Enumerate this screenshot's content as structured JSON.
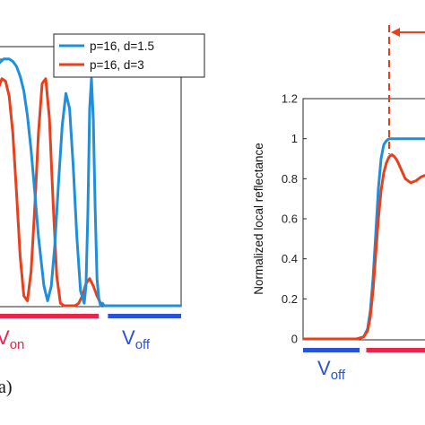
{
  "panel_label": "a)",
  "chart_data": [
    {
      "type": "line",
      "panel": "left",
      "title": "",
      "xlabel": "",
      "ylabel": "",
      "xlim": [
        0,
        1
      ],
      "ylim": [
        0,
        1.05
      ],
      "legend": {
        "placement": "top-right",
        "entries": [
          {
            "label": "p=16, d=1.5",
            "color": "#1f8fdb"
          },
          {
            "label": "p=16, d=3",
            "color": "#e8401c"
          }
        ]
      },
      "series": [
        {
          "name": "p=16, d=1.5",
          "color": "#1f8fdb",
          "x": [
            0.0,
            0.03,
            0.06,
            0.08,
            0.1,
            0.12,
            0.14,
            0.16,
            0.18,
            0.2,
            0.22,
            0.25,
            0.27,
            0.29,
            0.31,
            0.33,
            0.35,
            0.37,
            0.39,
            0.41,
            0.43,
            0.45,
            0.47,
            0.48,
            0.49,
            0.5,
            0.51,
            0.52,
            0.53,
            0.54,
            0.55,
            0.56,
            0.57,
            0.58,
            0.6,
            0.62,
            0.64,
            0.66,
            0.7,
            1.0
          ],
          "y": [
            0.98,
            1.0,
            1.0,
            0.99,
            0.97,
            0.93,
            0.87,
            0.77,
            0.63,
            0.46,
            0.28,
            0.08,
            0.02,
            0.08,
            0.25,
            0.5,
            0.73,
            0.86,
            0.8,
            0.57,
            0.28,
            0.06,
            0.01,
            0.08,
            0.38,
            0.8,
            0.92,
            0.75,
            0.4,
            0.11,
            0.03,
            0.0,
            0.01,
            0.0,
            0.0,
            0.0,
            0.0,
            0.0,
            0.0,
            0.0
          ]
        },
        {
          "name": "p=16, d=3",
          "color": "#e8401c",
          "x": [
            0.0,
            0.02,
            0.04,
            0.06,
            0.08,
            0.1,
            0.12,
            0.14,
            0.16,
            0.18,
            0.2,
            0.22,
            0.24,
            0.26,
            0.28,
            0.3,
            0.32,
            0.34,
            0.36,
            0.38,
            0.4,
            0.42,
            0.44,
            0.46,
            0.48,
            0.5,
            0.52,
            0.54,
            0.56,
            0.58,
            0.6,
            0.62,
            0.66,
            0.7,
            1.0
          ],
          "y": [
            0.88,
            0.92,
            0.91,
            0.85,
            0.7,
            0.46,
            0.2,
            0.04,
            0.02,
            0.14,
            0.4,
            0.7,
            0.9,
            0.92,
            0.76,
            0.42,
            0.12,
            0.01,
            0.0,
            0.0,
            0.0,
            0.0,
            0.01,
            0.04,
            0.09,
            0.11,
            0.08,
            0.04,
            0.01,
            0.0,
            0.0,
            0.0,
            0.0,
            0.0,
            0.0
          ]
        }
      ],
      "bars": [
        {
          "label_main": "V",
          "label_sub": "on",
          "color": "#e8254a",
          "x_range": [
            0.0,
            0.55
          ]
        },
        {
          "label_main": "V",
          "label_sub": "off",
          "color": "#2a52d8",
          "x_range": [
            0.6,
            1.0
          ]
        }
      ]
    },
    {
      "type": "line",
      "panel": "right",
      "title": "",
      "xlabel": "",
      "ylabel": "Normalized local reflectance",
      "xlim": [
        0,
        1
      ],
      "ylim": [
        0,
        1.2
      ],
      "yticks": [
        "0",
        "0.2",
        "0.4",
        "0.6",
        "0.8",
        "1",
        "1.2"
      ],
      "series": [
        {
          "name": "p=16, d=1.5",
          "color": "#1f8fdb",
          "x": [
            0.0,
            0.4,
            0.45,
            0.48,
            0.5,
            0.52,
            0.54,
            0.56,
            0.58,
            0.6,
            0.62,
            0.64,
            0.66,
            0.7,
            0.8,
            0.9,
            1.0
          ],
          "y": [
            0.0,
            0.0,
            0.01,
            0.05,
            0.14,
            0.3,
            0.52,
            0.75,
            0.9,
            0.97,
            0.99,
            1.0,
            1.0,
            1.0,
            1.0,
            1.0,
            1.0
          ]
        },
        {
          "name": "p=16, d=3",
          "color": "#e8401c",
          "x": [
            0.0,
            0.4,
            0.45,
            0.48,
            0.5,
            0.52,
            0.54,
            0.56,
            0.58,
            0.6,
            0.62,
            0.64,
            0.66,
            0.68,
            0.7,
            0.72,
            0.74,
            0.76,
            0.78,
            0.8,
            0.84,
            0.88,
            0.92,
            0.96,
            1.0
          ],
          "y": [
            0.0,
            0.0,
            0.01,
            0.04,
            0.11,
            0.24,
            0.42,
            0.6,
            0.74,
            0.83,
            0.88,
            0.91,
            0.92,
            0.91,
            0.89,
            0.86,
            0.83,
            0.8,
            0.79,
            0.78,
            0.79,
            0.81,
            0.82,
            0.82,
            0.8
          ]
        }
      ],
      "bars": [
        {
          "label_main": "V",
          "label_sub": "off",
          "color": "#2a52d8",
          "x_range": [
            0.0,
            0.42
          ]
        },
        {
          "label_main": "",
          "label_sub": "",
          "color": "#e8254a",
          "x_range": [
            0.47,
            1.0
          ]
        }
      ],
      "annotation": {
        "type": "dashed-vertical-arrow",
        "color": "#e8401c",
        "x": 0.64
      }
    }
  ]
}
